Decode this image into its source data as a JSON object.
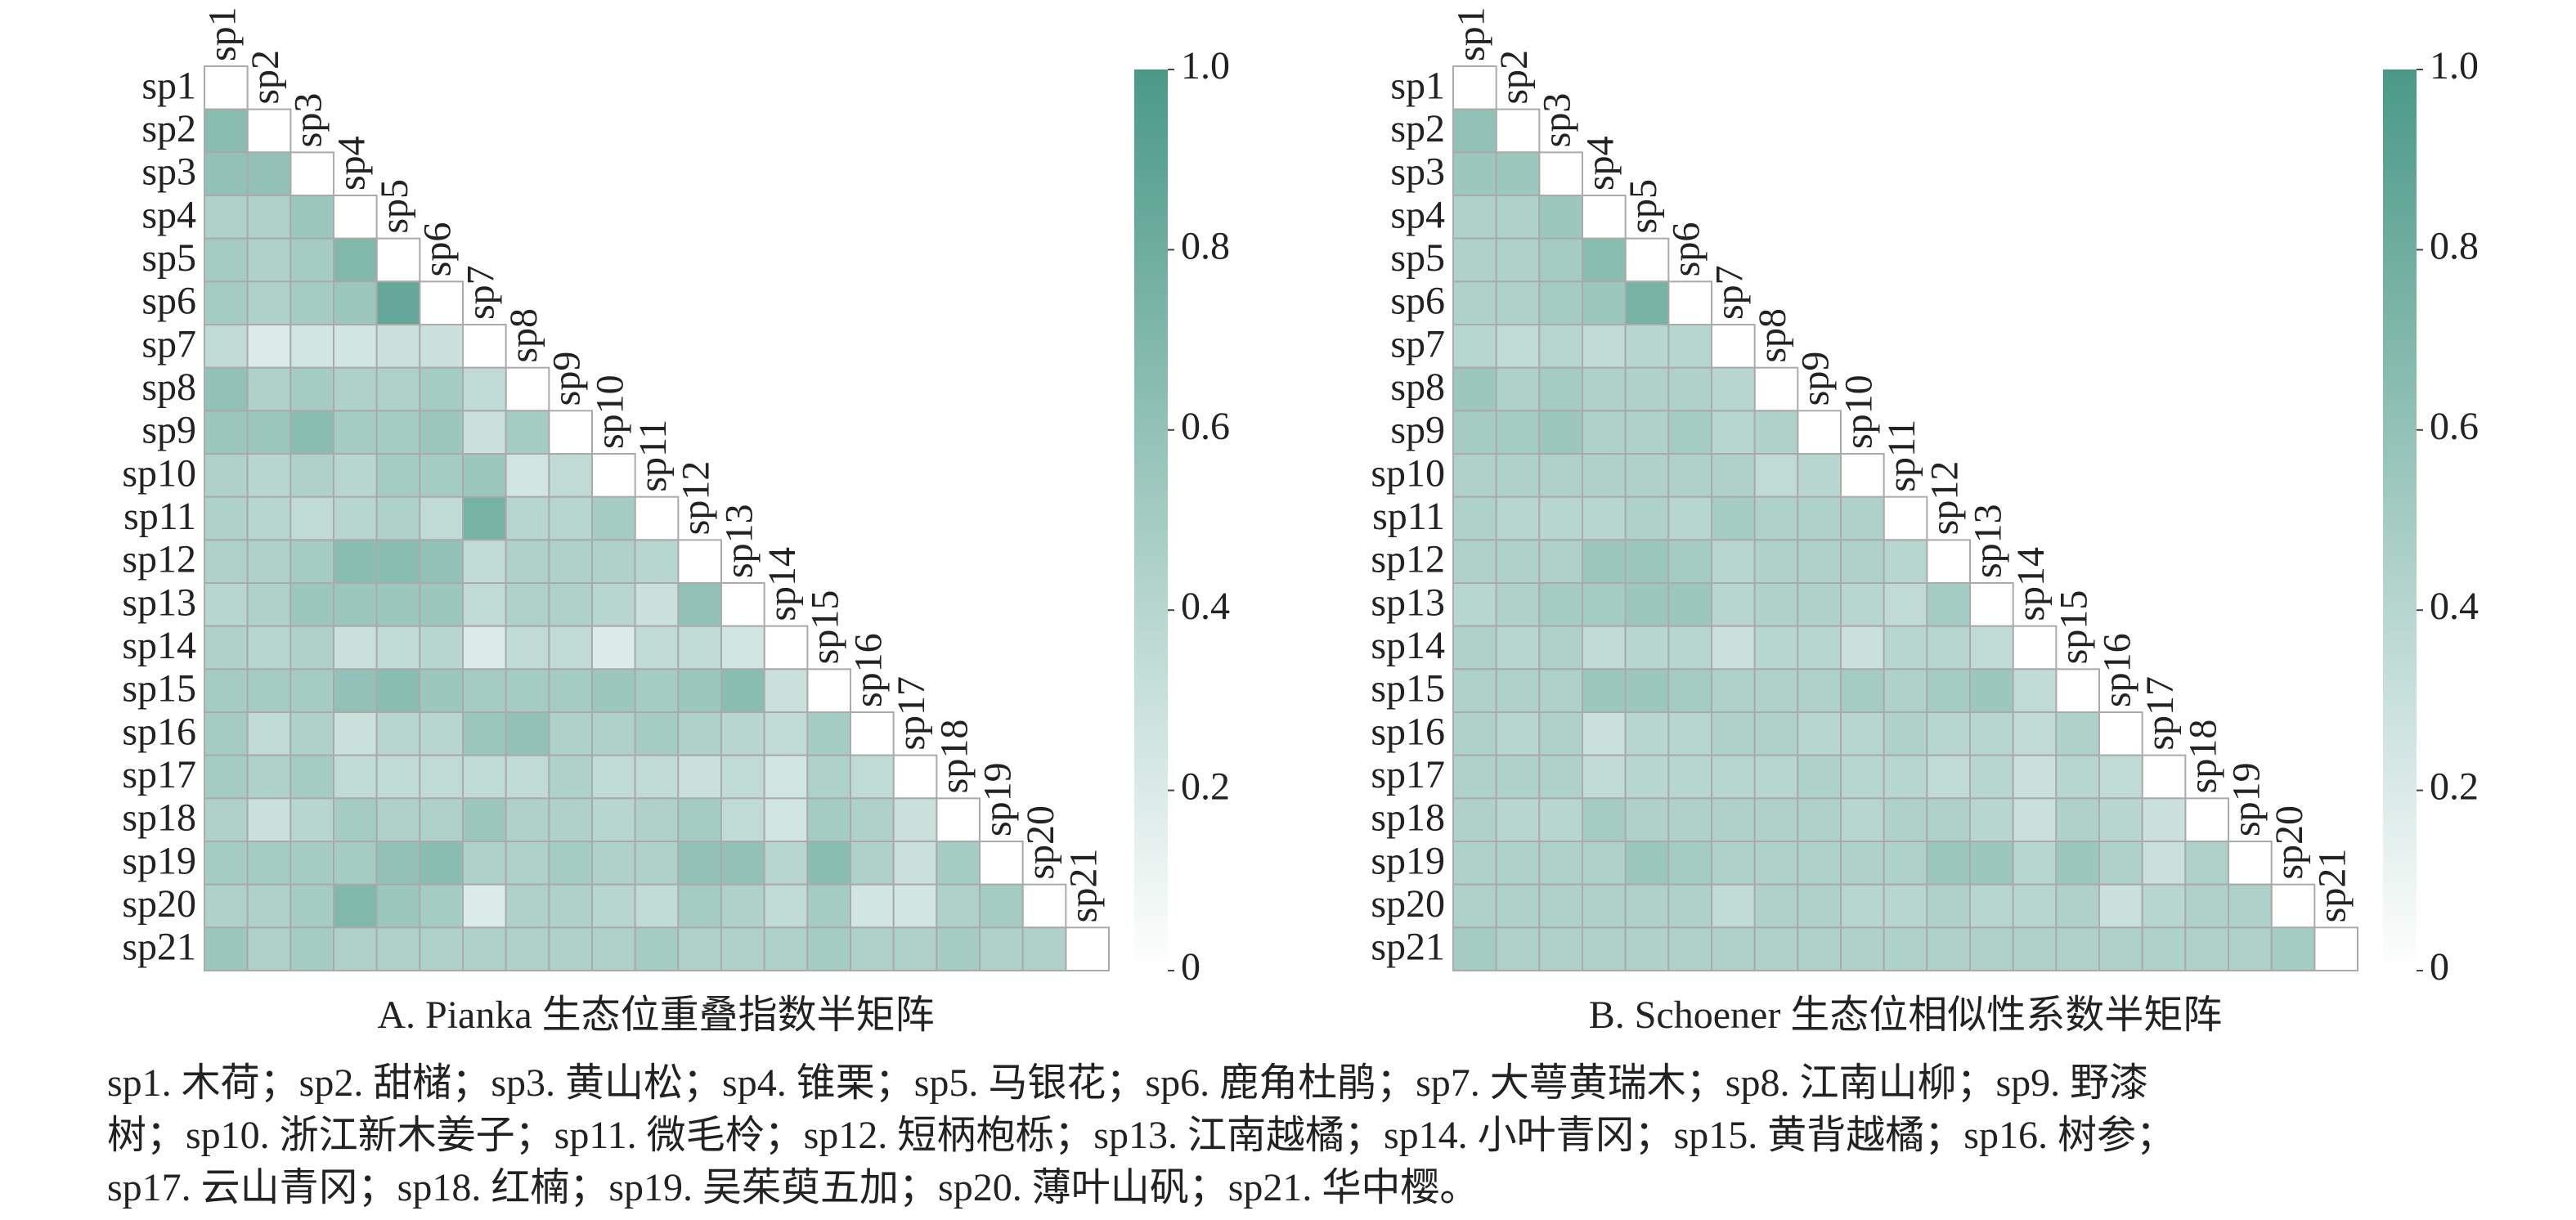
{
  "chart_data": [
    {
      "type": "heatmap",
      "title": "A. Pianka 生态位重叠指数半矩阵",
      "categories": [
        "sp1",
        "sp2",
        "sp3",
        "sp4",
        "sp5",
        "sp6",
        "sp7",
        "sp8",
        "sp9",
        "sp10",
        "sp11",
        "sp12",
        "sp13",
        "sp14",
        "sp15",
        "sp16",
        "sp17",
        "sp18",
        "sp19",
        "sp20",
        "sp21"
      ],
      "values": [
        [],
        [
          0.65
        ],
        [
          0.6,
          0.6
        ],
        [
          0.45,
          0.45,
          0.55
        ],
        [
          0.5,
          0.45,
          0.5,
          0.7
        ],
        [
          0.5,
          0.45,
          0.5,
          0.55,
          0.85
        ],
        [
          0.35,
          0.2,
          0.25,
          0.25,
          0.3,
          0.3
        ],
        [
          0.6,
          0.45,
          0.5,
          0.45,
          0.45,
          0.5,
          0.35
        ],
        [
          0.55,
          0.55,
          0.65,
          0.5,
          0.5,
          0.55,
          0.3,
          0.5
        ],
        [
          0.45,
          0.4,
          0.45,
          0.4,
          0.5,
          0.5,
          0.55,
          0.25,
          0.35
        ],
        [
          0.45,
          0.4,
          0.35,
          0.4,
          0.45,
          0.35,
          0.75,
          0.4,
          0.4,
          0.5
        ],
        [
          0.45,
          0.45,
          0.5,
          0.65,
          0.65,
          0.6,
          0.35,
          0.45,
          0.45,
          0.45,
          0.4
        ],
        [
          0.4,
          0.45,
          0.55,
          0.55,
          0.55,
          0.55,
          0.35,
          0.45,
          0.45,
          0.4,
          0.3,
          0.6
        ],
        [
          0.45,
          0.4,
          0.45,
          0.3,
          0.35,
          0.4,
          0.2,
          0.35,
          0.35,
          0.2,
          0.35,
          0.35,
          0.25
        ],
        [
          0.5,
          0.5,
          0.5,
          0.6,
          0.65,
          0.55,
          0.5,
          0.5,
          0.5,
          0.55,
          0.5,
          0.55,
          0.65,
          0.3
        ],
        [
          0.5,
          0.35,
          0.45,
          0.3,
          0.4,
          0.4,
          0.55,
          0.6,
          0.45,
          0.45,
          0.5,
          0.45,
          0.4,
          0.35,
          0.5
        ],
        [
          0.5,
          0.45,
          0.5,
          0.35,
          0.35,
          0.35,
          0.35,
          0.35,
          0.45,
          0.35,
          0.35,
          0.3,
          0.35,
          0.25,
          0.45,
          0.35
        ],
        [
          0.45,
          0.3,
          0.4,
          0.5,
          0.45,
          0.45,
          0.55,
          0.45,
          0.45,
          0.4,
          0.45,
          0.5,
          0.35,
          0.25,
          0.5,
          0.45,
          0.3
        ],
        [
          0.5,
          0.5,
          0.5,
          0.5,
          0.6,
          0.65,
          0.45,
          0.45,
          0.5,
          0.45,
          0.45,
          0.6,
          0.6,
          0.4,
          0.65,
          0.45,
          0.3,
          0.5
        ],
        [
          0.45,
          0.45,
          0.5,
          0.7,
          0.55,
          0.5,
          0.2,
          0.45,
          0.45,
          0.4,
          0.35,
          0.5,
          0.45,
          0.35,
          0.5,
          0.25,
          0.25,
          0.45,
          0.5
        ],
        [
          0.55,
          0.45,
          0.5,
          0.45,
          0.45,
          0.45,
          0.45,
          0.45,
          0.45,
          0.45,
          0.5,
          0.45,
          0.45,
          0.45,
          0.5,
          0.45,
          0.45,
          0.5,
          0.45,
          0.45
        ]
      ],
      "colormap": [
        "#ffffff",
        "#4a9987"
      ],
      "zlim": [
        0,
        1
      ],
      "zticks": [
        0,
        0.2,
        0.4,
        0.6,
        0.8,
        {
          "value": 1,
          "label": "1.0"
        }
      ]
    },
    {
      "type": "heatmap",
      "title": "B. Schoener 生态位相似性系数半矩阵",
      "categories": [
        "sp1",
        "sp2",
        "sp3",
        "sp4",
        "sp5",
        "sp6",
        "sp7",
        "sp8",
        "sp9",
        "sp10",
        "sp11",
        "sp12",
        "sp13",
        "sp14",
        "sp15",
        "sp16",
        "sp17",
        "sp18",
        "sp19",
        "sp20",
        "sp21"
      ],
      "values": [
        [],
        [
          0.6
        ],
        [
          0.55,
          0.55
        ],
        [
          0.45,
          0.45,
          0.55
        ],
        [
          0.45,
          0.45,
          0.5,
          0.65
        ],
        [
          0.45,
          0.45,
          0.5,
          0.55,
          0.75
        ],
        [
          0.4,
          0.35,
          0.4,
          0.35,
          0.4,
          0.4
        ],
        [
          0.55,
          0.45,
          0.5,
          0.45,
          0.45,
          0.45,
          0.4
        ],
        [
          0.5,
          0.5,
          0.55,
          0.45,
          0.45,
          0.5,
          0.4,
          0.45
        ],
        [
          0.45,
          0.45,
          0.45,
          0.45,
          0.45,
          0.45,
          0.45,
          0.35,
          0.4
        ],
        [
          0.45,
          0.4,
          0.4,
          0.4,
          0.45,
          0.4,
          0.5,
          0.45,
          0.45,
          0.45
        ],
        [
          0.45,
          0.45,
          0.45,
          0.55,
          0.55,
          0.5,
          0.4,
          0.45,
          0.45,
          0.45,
          0.4
        ],
        [
          0.4,
          0.45,
          0.5,
          0.5,
          0.55,
          0.55,
          0.4,
          0.45,
          0.45,
          0.4,
          0.35,
          0.5
        ],
        [
          0.45,
          0.4,
          0.45,
          0.35,
          0.4,
          0.4,
          0.3,
          0.4,
          0.4,
          0.3,
          0.4,
          0.4,
          0.35
        ],
        [
          0.45,
          0.45,
          0.45,
          0.55,
          0.55,
          0.5,
          0.45,
          0.45,
          0.45,
          0.5,
          0.45,
          0.5,
          0.55,
          0.35
        ],
        [
          0.45,
          0.4,
          0.45,
          0.3,
          0.4,
          0.4,
          0.45,
          0.45,
          0.4,
          0.4,
          0.45,
          0.4,
          0.4,
          0.35,
          0.45
        ],
        [
          0.45,
          0.45,
          0.45,
          0.35,
          0.4,
          0.4,
          0.4,
          0.4,
          0.45,
          0.4,
          0.4,
          0.35,
          0.4,
          0.3,
          0.4,
          0.35
        ],
        [
          0.45,
          0.4,
          0.4,
          0.5,
          0.45,
          0.45,
          0.45,
          0.45,
          0.45,
          0.4,
          0.45,
          0.45,
          0.4,
          0.3,
          0.45,
          0.4,
          0.3
        ],
        [
          0.45,
          0.45,
          0.45,
          0.45,
          0.55,
          0.5,
          0.45,
          0.45,
          0.45,
          0.45,
          0.45,
          0.55,
          0.55,
          0.4,
          0.55,
          0.45,
          0.3,
          0.45
        ],
        [
          0.45,
          0.45,
          0.45,
          0.45,
          0.45,
          0.45,
          0.35,
          0.45,
          0.45,
          0.4,
          0.4,
          0.45,
          0.4,
          0.4,
          0.45,
          0.3,
          0.4,
          0.45,
          0.45
        ],
        [
          0.5,
          0.45,
          0.45,
          0.45,
          0.45,
          0.45,
          0.45,
          0.45,
          0.45,
          0.45,
          0.45,
          0.45,
          0.45,
          0.45,
          0.45,
          0.45,
          0.45,
          0.45,
          0.45,
          0.5
        ]
      ],
      "colormap": [
        "#ffffff",
        "#4a9987"
      ],
      "zlim": [
        0,
        1
      ],
      "zticks": [
        0,
        0.2,
        0.4,
        0.6,
        0.8,
        {
          "value": 1,
          "label": "1.0"
        }
      ]
    }
  ],
  "note": [
    "sp1. 木荷；sp2. 甜槠；sp3. 黄山松；sp4. 锥栗；sp5. 马银花；sp6. 鹿角杜鹃；sp7. 大萼黄瑞木；sp8. 江南山柳；sp9. 野漆",
    "树；sp10. 浙江新木姜子；sp11. 微毛柃；sp12. 短柄枹栎；sp13. 江南越橘；sp14. 小叶青冈；sp15. 黄背越橘；sp16. 树参；",
    "sp17. 云山青冈；sp18. 红楠；sp19. 吴茱萸五加；sp20. 薄叶山矾；sp21. 华中樱。"
  ]
}
